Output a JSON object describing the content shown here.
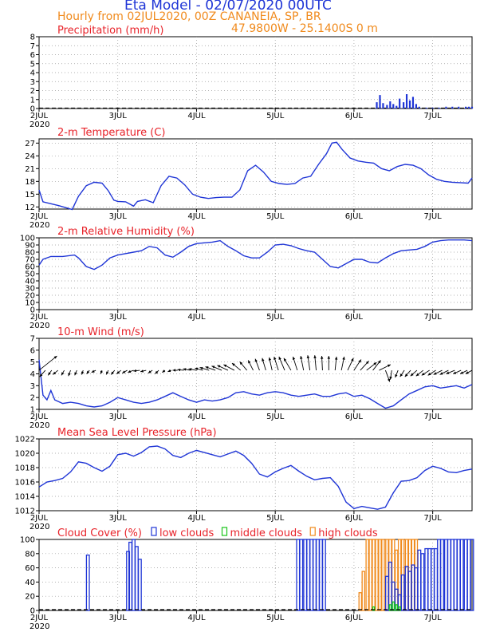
{
  "header": {
    "title": "Eta Model - 02/07/2020 00UTC",
    "subtitle": "Hourly from 02JUL2020, 00Z  CANANEIA, SP, BR",
    "coords": "47.9800W - 25.1400S        0  m"
  },
  "colors": {
    "series": "#1f35d6",
    "title": "#e8232a",
    "orange": "#f08a1c",
    "green": "#19c419",
    "wind": "#000000"
  },
  "x_axis": {
    "days": [
      "2JUL",
      "3JUL",
      "4JUL",
      "5JUL",
      "6JUL",
      "7JUL"
    ],
    "day_offsets": [
      0,
      1,
      2,
      3,
      4,
      5
    ],
    "range": [
      0,
      5.5
    ],
    "year": "2020"
  },
  "chart_data": [
    {
      "id": "precip",
      "type": "bar",
      "title": "Precipitation (mm/h)",
      "ylim": [
        0,
        8
      ],
      "yticks": [
        0,
        1,
        2,
        3,
        4,
        5,
        6,
        7,
        8
      ],
      "ytick_labels": [
        "0",
        "1",
        "2",
        "3",
        "4",
        "5",
        "6",
        "7",
        "8"
      ],
      "x": [
        4.29,
        4.33,
        4.37,
        4.42,
        4.46,
        4.5,
        4.54,
        4.58,
        4.63,
        4.67,
        4.71,
        4.75,
        4.79,
        4.83,
        4.92,
        5.0,
        5.08,
        5.17,
        5.25,
        5.33,
        5.42,
        5.46,
        5.5
      ],
      "values": [
        0.7,
        1.5,
        0.6,
        0.4,
        0.8,
        0.5,
        0.3,
        1.1,
        0.7,
        1.6,
        0.9,
        1.3,
        0.5,
        0.2,
        0.1,
        0.1,
        0.1,
        0.2,
        0.2,
        0.2,
        0.2,
        0.2,
        0.2
      ]
    },
    {
      "id": "temp",
      "type": "line",
      "title": "2-m Temperature (C)",
      "ylim": [
        11.5,
        28
      ],
      "yticks": [
        12,
        15,
        18,
        21,
        24,
        27
      ],
      "ytick_labels": [
        "12",
        "15",
        "18",
        "21",
        "24",
        "27"
      ],
      "x": [
        0,
        0.05,
        0.25,
        0.42,
        0.5,
        0.6,
        0.7,
        0.8,
        0.88,
        0.95,
        1.0,
        1.1,
        1.2,
        1.25,
        1.35,
        1.45,
        1.55,
        1.65,
        1.75,
        1.85,
        1.95,
        2.05,
        2.15,
        2.25,
        2.35,
        2.45,
        2.55,
        2.65,
        2.75,
        2.85,
        2.95,
        3.05,
        3.15,
        3.25,
        3.35,
        3.45,
        3.55,
        3.65,
        3.72,
        3.78,
        3.85,
        3.95,
        4.05,
        4.15,
        4.25,
        4.35,
        4.45,
        4.55,
        4.65,
        4.75,
        4.85,
        4.95,
        5.05,
        5.15,
        5.25,
        5.35,
        5.45,
        5.5
      ],
      "values": [
        16,
        13.2,
        12.3,
        11.4,
        14.5,
        17,
        17.8,
        17.6,
        15.8,
        13.6,
        13.3,
        13.2,
        12.2,
        13.3,
        13.7,
        13,
        17,
        19.2,
        18.8,
        17.2,
        15,
        14.3,
        14,
        14.2,
        14.3,
        14.3,
        16,
        20.5,
        21.8,
        20.2,
        18,
        17.5,
        17.3,
        17.5,
        18.8,
        19.2,
        22,
        24.5,
        27,
        27.2,
        25.5,
        23.5,
        22.8,
        22.5,
        22.3,
        21,
        20.5,
        21.5,
        22,
        21.8,
        21,
        19.5,
        18.5,
        18,
        17.8,
        17.7,
        17.6,
        18.8
      ]
    },
    {
      "id": "rh",
      "type": "line",
      "title": "2-m Relative Humidity (%)",
      "ylim": [
        0,
        100
      ],
      "yticks": [
        0,
        10,
        20,
        30,
        40,
        50,
        60,
        70,
        80,
        90,
        100
      ],
      "ytick_labels": [
        "0",
        "10",
        "20",
        "30",
        "40",
        "50",
        "60",
        "70",
        "80",
        "90",
        "100"
      ],
      "x": [
        0,
        0.05,
        0.15,
        0.3,
        0.45,
        0.5,
        0.6,
        0.7,
        0.8,
        0.9,
        1.0,
        1.1,
        1.2,
        1.3,
        1.4,
        1.5,
        1.6,
        1.7,
        1.8,
        1.9,
        2.0,
        2.1,
        2.2,
        2.3,
        2.4,
        2.5,
        2.6,
        2.7,
        2.8,
        2.9,
        3.0,
        3.1,
        3.2,
        3.3,
        3.4,
        3.5,
        3.6,
        3.7,
        3.8,
        3.9,
        4.0,
        4.1,
        4.2,
        4.3,
        4.4,
        4.5,
        4.6,
        4.7,
        4.8,
        4.9,
        5.0,
        5.1,
        5.2,
        5.3,
        5.4,
        5.5
      ],
      "values": [
        62,
        70,
        74,
        74,
        76,
        72,
        60,
        56,
        62,
        72,
        76,
        78,
        80,
        82,
        88,
        86,
        76,
        73,
        80,
        88,
        92,
        93,
        94,
        96,
        88,
        82,
        75,
        72,
        72,
        80,
        90,
        91,
        89,
        85,
        82,
        80,
        70,
        60,
        58,
        64,
        70,
        70,
        66,
        65,
        72,
        78,
        82,
        83,
        84,
        88,
        94,
        96,
        97,
        97,
        97,
        96
      ]
    },
    {
      "id": "wind",
      "type": "line",
      "title": "10-m Wind (m/s)",
      "ylim": [
        1,
        7
      ],
      "yticks": [
        1,
        2,
        3,
        4,
        5,
        6,
        7
      ],
      "ytick_labels": [
        "1",
        "2",
        "3",
        "4",
        "5",
        "6",
        "7"
      ],
      "x": [
        0,
        0.05,
        0.1,
        0.15,
        0.2,
        0.3,
        0.4,
        0.5,
        0.6,
        0.7,
        0.8,
        0.9,
        1.0,
        1.1,
        1.2,
        1.3,
        1.4,
        1.5,
        1.6,
        1.7,
        1.8,
        1.9,
        2.0,
        2.1,
        2.2,
        2.3,
        2.4,
        2.5,
        2.6,
        2.7,
        2.8,
        2.9,
        3.0,
        3.1,
        3.2,
        3.3,
        3.4,
        3.5,
        3.6,
        3.7,
        3.8,
        3.9,
        4.0,
        4.1,
        4.2,
        4.3,
        4.4,
        4.5,
        4.6,
        4.7,
        4.8,
        4.9,
        5.0,
        5.1,
        5.2,
        5.3,
        5.4,
        5.5
      ],
      "values": [
        5.2,
        2.2,
        1.8,
        2.6,
        1.8,
        1.5,
        1.6,
        1.5,
        1.3,
        1.2,
        1.3,
        1.6,
        2.0,
        1.8,
        1.6,
        1.5,
        1.6,
        1.8,
        2.1,
        2.4,
        2.1,
        1.8,
        1.6,
        1.8,
        1.7,
        1.8,
        2.0,
        2.4,
        2.5,
        2.3,
        2.2,
        2.4,
        2.5,
        2.4,
        2.2,
        2.1,
        2.2,
        2.3,
        2.1,
        2.1,
        2.3,
        2.4,
        2.1,
        2.2,
        1.9,
        1.5,
        1.1,
        1.3,
        1.8,
        2.3,
        2.6,
        2.9,
        3.0,
        2.8,
        2.9,
        3.0,
        2.8,
        3.1
      ]
    },
    {
      "id": "mslp",
      "type": "line",
      "title": "Mean Sea Level Pressure (hPa)",
      "ylim": [
        1012,
        1022
      ],
      "yticks": [
        1012,
        1014,
        1016,
        1018,
        1020,
        1022
      ],
      "ytick_labels": [
        "1012",
        "1014",
        "1016",
        "1018",
        "1020",
        "1022"
      ],
      "x": [
        0,
        0.1,
        0.2,
        0.3,
        0.4,
        0.5,
        0.6,
        0.7,
        0.8,
        0.9,
        1.0,
        1.1,
        1.2,
        1.3,
        1.4,
        1.5,
        1.6,
        1.7,
        1.8,
        1.9,
        2.0,
        2.1,
        2.2,
        2.3,
        2.4,
        2.5,
        2.6,
        2.7,
        2.8,
        2.9,
        3.0,
        3.1,
        3.2,
        3.3,
        3.4,
        3.5,
        3.6,
        3.7,
        3.8,
        3.9,
        4.0,
        4.1,
        4.2,
        4.3,
        4.4,
        4.5,
        4.6,
        4.7,
        4.8,
        4.9,
        5.0,
        5.1,
        5.2,
        5.3,
        5.4,
        5.5
      ],
      "values": [
        1015.3,
        1016,
        1016.2,
        1016.5,
        1017.4,
        1018.8,
        1018.6,
        1018,
        1017.5,
        1018.2,
        1019.8,
        1020,
        1019.6,
        1020.1,
        1020.9,
        1021,
        1020.6,
        1019.7,
        1019.4,
        1020,
        1020.4,
        1020.1,
        1019.8,
        1019.5,
        1019.9,
        1020.3,
        1019.7,
        1018.6,
        1017.1,
        1016.7,
        1017.4,
        1017.9,
        1018.3,
        1017.5,
        1016.8,
        1016.3,
        1016.5,
        1016.6,
        1015.4,
        1013.2,
        1012.3,
        1012.6,
        1012.4,
        1012.2,
        1012.5,
        1014.5,
        1016.1,
        1016.2,
        1016.6,
        1017.6,
        1018.2,
        1017.9,
        1017.4,
        1017.3,
        1017.6,
        1017.8
      ]
    },
    {
      "id": "cloud",
      "type": "bar",
      "title": "Cloud Cover (%)",
      "ylim": [
        0,
        100
      ],
      "yticks": [
        0,
        20,
        40,
        60,
        80,
        100
      ],
      "ytick_labels": [
        "0",
        "20",
        "40",
        "60",
        "80",
        "100"
      ],
      "legend": [
        {
          "label": "low clouds",
          "color": "#1f35d6"
        },
        {
          "label": "middle clouds",
          "color": "#19c419"
        },
        {
          "label": "high clouds",
          "color": "#f08a1c"
        }
      ],
      "series": [
        {
          "name": "low clouds",
          "x": [
            0.62,
            1.13,
            1.16,
            1.2,
            1.24,
            1.28,
            3.29,
            3.33,
            3.38,
            3.42,
            3.46,
            3.5,
            3.54,
            3.58,
            3.62,
            4.42,
            4.46,
            4.5,
            4.54,
            4.58,
            4.62,
            4.67,
            4.71,
            4.75,
            4.79,
            4.83,
            4.87,
            4.92,
            4.96,
            5.0,
            5.04,
            5.08,
            5.12,
            5.17,
            5.21,
            5.25,
            5.29,
            5.33,
            5.37,
            5.42,
            5.46,
            5.5
          ],
          "values": [
            78,
            83,
            96,
            100,
            90,
            72,
            100,
            100,
            100,
            100,
            100,
            100,
            100,
            100,
            100,
            48,
            68,
            40,
            30,
            22,
            50,
            62,
            55,
            64,
            60,
            85,
            80,
            87,
            87,
            87,
            87,
            100,
            100,
            100,
            100,
            100,
            100,
            100,
            100,
            100,
            100,
            100
          ]
        },
        {
          "name": "middle clouds",
          "x": [
            4.25,
            4.46,
            4.5,
            4.54,
            4.58
          ],
          "values": [
            5,
            8,
            12,
            8,
            5
          ]
        },
        {
          "name": "high clouds",
          "x": [
            4.08,
            4.12,
            4.17,
            4.21,
            4.25,
            4.29,
            4.33,
            4.37,
            4.42,
            4.46,
            4.5,
            4.54,
            4.58,
            4.62,
            4.67,
            4.71,
            4.75,
            4.79
          ],
          "values": [
            25,
            55,
            100,
            100,
            100,
            100,
            100,
            100,
            100,
            100,
            100,
            85,
            100,
            100,
            100,
            100,
            100,
            100
          ]
        }
      ]
    }
  ],
  "wind_barbs": {
    "x": [
      0,
      0.08,
      0.16,
      0.24,
      0.32,
      0.4,
      0.48,
      0.56,
      0.64,
      0.72,
      0.8,
      0.88,
      0.96,
      1.04,
      1.12,
      1.2,
      1.28,
      1.36,
      1.44,
      1.52,
      1.6,
      1.68,
      1.76,
      1.84,
      1.92,
      2.0,
      2.08,
      2.16,
      2.24,
      2.32,
      2.4,
      2.48,
      2.56,
      2.64,
      2.72,
      2.8,
      2.88,
      2.96,
      3.04,
      3.12,
      3.2,
      3.28,
      3.36,
      3.44,
      3.52,
      3.6,
      3.68,
      3.76,
      3.84,
      3.92,
      4.0,
      4.08,
      4.16,
      4.24,
      4.32,
      4.4,
      4.48,
      4.56,
      4.64,
      4.72,
      4.8,
      4.88,
      4.96,
      5.04,
      5.12,
      5.2,
      5.28,
      5.36,
      5.44,
      5.5
    ],
    "u": [
      2.5,
      -0.8,
      -0.5,
      -0.7,
      -0.4,
      -0.3,
      -0.3,
      -0.2,
      -0.4,
      -0.6,
      -0.2,
      -0.3,
      -0.5,
      -0.6,
      -0.7,
      -0.8,
      -0.9,
      -0.8,
      -0.6,
      -0.5,
      -0.4,
      -0.5,
      -0.7,
      -0.9,
      -1.0,
      -1.1,
      -1.1,
      -1.3,
      -1.4,
      -1.4,
      -1.5,
      -1.5,
      -1.2,
      -1.0,
      -0.7,
      -0.6,
      -0.5,
      -0.4,
      -0.6,
      -0.8,
      -1.0,
      -0.6,
      -0.4,
      -0.3,
      -0.2,
      -0.1,
      0.0,
      0.2,
      0.4,
      0.8,
      1.0,
      1.2,
      1.4,
      1.1,
      1.6,
      0.6,
      -0.2,
      -0.4,
      -0.6,
      -0.8,
      -0.9,
      -1.0,
      -1.1,
      -1.1,
      -1.2,
      -1.2,
      -1.2,
      -1.1,
      -1.0,
      -0.9
    ],
    "v": [
      2.0,
      -0.9,
      -0.7,
      -0.6,
      -0.7,
      -0.8,
      -0.7,
      -0.6,
      -0.5,
      -0.3,
      -0.5,
      -0.6,
      -0.6,
      -0.5,
      -0.4,
      -0.3,
      -0.1,
      -0.2,
      -0.4,
      -0.5,
      -0.3,
      -0.2,
      0.0,
      0.1,
      0.2,
      0.2,
      0.3,
      0.4,
      0.5,
      0.6,
      0.7,
      0.8,
      1.0,
      1.2,
      1.4,
      1.6,
      1.7,
      1.8,
      1.9,
      1.9,
      1.7,
      1.9,
      2.0,
      2.1,
      2.1,
      2.0,
      2.0,
      1.9,
      1.9,
      1.7,
      1.5,
      1.3,
      1.1,
      1.4,
      0.8,
      -1.6,
      -1.3,
      -1.0,
      -0.9,
      -0.9,
      -0.8,
      -0.8,
      -0.7,
      -0.7,
      -0.6,
      -0.6,
      -0.5,
      -0.5,
      -0.5,
      -0.5
    ]
  }
}
